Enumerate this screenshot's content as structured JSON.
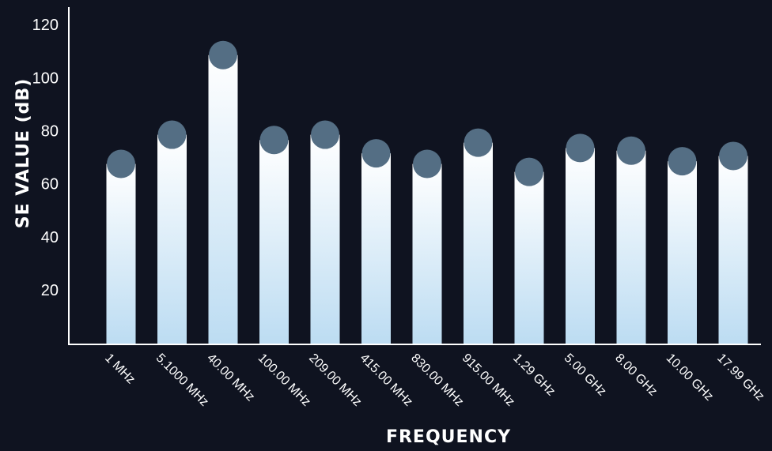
{
  "chart_data": {
    "type": "bar",
    "title": "",
    "xlabel": "FREQUENCY",
    "ylabel": "SE VALUE (dB)",
    "categories": [
      "1 MHz",
      "5.1000 MHz",
      "40.00 MHz",
      "100.00 MHz",
      "209.00 MHz",
      "415.00 MHz",
      "830.00 MHz",
      "915.00 MHz",
      "1.29 GHz",
      "5.00 GHz",
      "8.00 GHz",
      "10.00 GHz",
      "17.99 GHz"
    ],
    "values": [
      68,
      79,
      109,
      77,
      79,
      72,
      68,
      76,
      65,
      74,
      73,
      69,
      71
    ],
    "ylim": [
      0,
      120
    ],
    "yticks": [
      "20",
      "40",
      "60",
      "80",
      "100",
      "120"
    ],
    "grid": false,
    "colors": {
      "background": "#0f1320",
      "bar_top": "#ffffff",
      "bar_bottom": "#bcdcf2",
      "marker": "#546e84",
      "axis": "#ffffff",
      "text": "#ffffff"
    }
  }
}
